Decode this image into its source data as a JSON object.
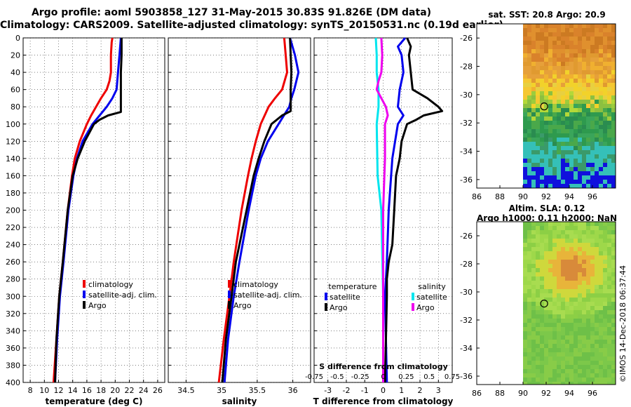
{
  "header": {
    "title_line1": "Argo profile: aoml 5903858_127 31-May-2015 30.83S 91.826E (DM data)",
    "title_line2": "Climatology: CARS2009. Satellite-adjusted climatology: synTS_20150531.nc (0.19d earlier)"
  },
  "colors": {
    "climatology": "#ee0000",
    "satellite": "#0000ee",
    "argo": "#000000",
    "sat_salinity": "#00e5ee",
    "argo_salinity": "#ee00ee"
  },
  "chart_data": [
    {
      "type": "line",
      "name": "temperature",
      "xlabel": "temperature (deg C)",
      "ylabel": "",
      "xlim": [
        7,
        27
      ],
      "ylim": [
        400,
        0
      ],
      "xticks": [
        "8",
        "10",
        "12",
        "14",
        "16",
        "18",
        "20",
        "22",
        "24",
        "26"
      ],
      "yticks": [
        "0",
        "20",
        "40",
        "60",
        "80",
        "100",
        "120",
        "140",
        "160",
        "180",
        "200",
        "220",
        "240",
        "260",
        "280",
        "300",
        "320",
        "340",
        "360",
        "380",
        "400"
      ],
      "legend": [
        "climatology",
        "satellite-adj. clim.",
        "Argo"
      ],
      "series": [
        {
          "name": "climatology",
          "depth": [
            0,
            5,
            20,
            40,
            50,
            60,
            70,
            80,
            90,
            100,
            120,
            140,
            160,
            200,
            260,
            300,
            350,
            400
          ],
          "values": [
            19.6,
            19.5,
            19.4,
            19.4,
            19.2,
            18.8,
            18.0,
            17.3,
            16.6,
            16.0,
            15.0,
            14.3,
            13.9,
            13.3,
            12.6,
            12.1,
            11.7,
            11.3
          ]
        },
        {
          "name": "satellite-adj. clim.",
          "depth": [
            0,
            20,
            40,
            60,
            70,
            80,
            90,
            100,
            120,
            140,
            160,
            200,
            260,
            300,
            350,
            400
          ],
          "values": [
            20.8,
            20.6,
            20.4,
            20.2,
            19.6,
            18.8,
            17.8,
            16.8,
            15.4,
            14.6,
            14.1,
            13.4,
            12.7,
            12.2,
            11.8,
            11.5
          ]
        },
        {
          "name": "Argo",
          "depth": [
            0,
            20,
            40,
            60,
            80,
            86,
            90,
            95,
            100,
            120,
            140,
            160,
            200,
            260,
            300,
            350,
            400
          ],
          "values": [
            20.9,
            20.9,
            20.8,
            20.8,
            20.8,
            20.8,
            19.0,
            17.8,
            17.0,
            15.7,
            14.7,
            14.0,
            13.3,
            12.6,
            12.1,
            11.7,
            11.5
          ]
        }
      ]
    },
    {
      "type": "line",
      "name": "salinity",
      "xlabel": "salinity",
      "ylabel": "",
      "xlim": [
        34.25,
        36.25
      ],
      "ylim": [
        400,
        0
      ],
      "xticks": [
        "34.5",
        "35",
        "35.5",
        "36"
      ],
      "legend": [
        "climatology",
        "satellite-adj. clim.",
        "Argo"
      ],
      "series": [
        {
          "name": "climatology",
          "depth": [
            0,
            20,
            40,
            60,
            70,
            80,
            100,
            120,
            140,
            160,
            200,
            260,
            300,
            350,
            400
          ],
          "values": [
            35.88,
            35.9,
            35.92,
            35.85,
            35.75,
            35.66,
            35.55,
            35.48,
            35.42,
            35.37,
            35.28,
            35.17,
            35.11,
            35.03,
            34.96
          ]
        },
        {
          "name": "satellite-adj. clim.",
          "depth": [
            0,
            20,
            40,
            60,
            70,
            80,
            100,
            120,
            140,
            160,
            200,
            260,
            300,
            350,
            400
          ],
          "values": [
            35.96,
            36.03,
            36.08,
            36.02,
            35.98,
            35.95,
            35.8,
            35.65,
            35.55,
            35.48,
            35.38,
            35.25,
            35.17,
            35.09,
            35.04
          ]
        },
        {
          "name": "Argo",
          "depth": [
            0,
            20,
            40,
            60,
            80,
            85,
            90,
            100,
            120,
            140,
            160,
            200,
            260,
            300,
            350,
            400
          ],
          "values": [
            35.96,
            35.97,
            35.98,
            35.97,
            35.97,
            35.97,
            35.85,
            35.7,
            35.6,
            35.52,
            35.45,
            35.35,
            35.2,
            35.14,
            35.06,
            35.01
          ]
        }
      ]
    },
    {
      "type": "line",
      "name": "difference",
      "xlabel": "T difference from climatology",
      "ylabel": "",
      "xlim": [
        -3.75,
        3.75
      ],
      "ylim": [
        400,
        0
      ],
      "xticks": [
        "-3",
        "-2",
        "-1",
        "0",
        "1",
        "2",
        "3"
      ],
      "top_xlabel": "S difference from climatology",
      "top_xticks": [
        "-0.75",
        "-0.5",
        "-0.25",
        "0",
        "0.25",
        "0.5",
        "0.75"
      ],
      "legend_left_title": "temperature",
      "legend_right_title": "salinity",
      "legend": [
        "satellite",
        "Argo",
        "satellite",
        "Argo"
      ],
      "series": [
        {
          "name": "temperature satellite",
          "depth": [
            0,
            10,
            20,
            40,
            60,
            80,
            90,
            100,
            140,
            200,
            260,
            300,
            400
          ],
          "values": [
            1.2,
            0.8,
            1.0,
            1.1,
            0.9,
            0.8,
            1.1,
            0.8,
            0.5,
            0.3,
            0.2,
            0.1,
            0.2
          ]
        },
        {
          "name": "temperature Argo",
          "depth": [
            0,
            10,
            20,
            40,
            60,
            70,
            80,
            85,
            90,
            95,
            100,
            120,
            140,
            160,
            200,
            240,
            260,
            280,
            300,
            400
          ],
          "values": [
            1.3,
            1.5,
            1.4,
            1.5,
            1.6,
            2.4,
            3.0,
            3.2,
            2.2,
            1.8,
            1.3,
            1.0,
            0.9,
            0.7,
            0.6,
            0.5,
            0.3,
            0.2,
            0.2,
            0.1
          ]
        },
        {
          "name": "salinity satellite",
          "depth": [
            0,
            20,
            40,
            60,
            80,
            100,
            160,
            200,
            300,
            400
          ],
          "values": [
            -0.08,
            -0.07,
            -0.07,
            -0.05,
            -0.05,
            -0.07,
            -0.06,
            -0.02,
            0.0,
            0.0
          ]
        },
        {
          "name": "salinity Argo",
          "depth": [
            0,
            20,
            40,
            50,
            60,
            80,
            90,
            100,
            140,
            200,
            300,
            400
          ],
          "values": [
            -0.02,
            -0.01,
            -0.02,
            -0.05,
            -0.07,
            0.03,
            0.05,
            0.02,
            0.02,
            0.0,
            0.0,
            0.0
          ]
        }
      ]
    }
  ],
  "map_top": {
    "title": "sat. SST: 20.8 Argo: 20.9",
    "xticks": [
      "86",
      "88",
      "90",
      "92",
      "94",
      "96"
    ],
    "yticks": [
      "-26",
      "-28",
      "-30",
      "-32",
      "-34",
      "-36"
    ],
    "marker_lon": 91.826,
    "marker_lat": -30.83
  },
  "map_bottom": {
    "title_line1": "Altim. SLA: 0.12",
    "title_line2": "Argo h1000: 0.11 h2000: NaN",
    "xticks": [
      "86",
      "88",
      "90",
      "92",
      "94",
      "96"
    ],
    "yticks": [
      "-26",
      "-28",
      "-30",
      "-32",
      "-34",
      "-36"
    ],
    "marker_lon": 91.826,
    "marker_lat": -30.83
  },
  "footer": {
    "watermark": "©IMOS 14-Dec-2018 06:37:44"
  }
}
